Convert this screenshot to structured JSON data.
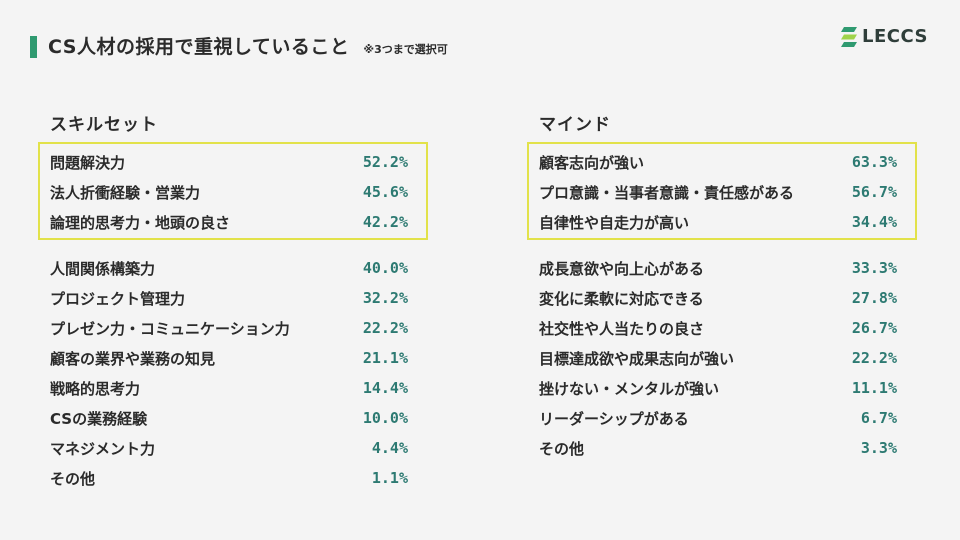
{
  "header": {
    "title": "CS人材の採用で重視していること",
    "note": "※3つまで選択可"
  },
  "logo": {
    "text": "LECCS",
    "icon": "leccs-logo-icon",
    "colors": [
      "#2f9a70",
      "#9fd34a"
    ]
  },
  "accent_color": "#2f9a70",
  "highlight_color": "#e2e24a",
  "value_color": "#2d7a72",
  "skillset": {
    "heading": "スキルセット",
    "top": [
      {
        "label": "問題解決力",
        "value": "52.2%"
      },
      {
        "label": "法人折衝経験・営業力",
        "value": "45.6%"
      },
      {
        "label": "論理的思考力・地頭の良さ",
        "value": "42.2%"
      }
    ],
    "rest": [
      {
        "label": "人間関係構築力",
        "value": "40.0%"
      },
      {
        "label": "プロジェクト管理力",
        "value": "32.2%"
      },
      {
        "label": "プレゼン力・コミュニケーション力",
        "value": "22.2%"
      },
      {
        "label": "顧客の業界や業務の知見",
        "value": "21.1%"
      },
      {
        "label": "戦略的思考力",
        "value": "14.4%"
      },
      {
        "label": "CSの業務経験",
        "value": "10.0%"
      },
      {
        "label": "マネジメント力",
        "value": "4.4%"
      },
      {
        "label": "その他",
        "value": "1.1%"
      }
    ]
  },
  "mind": {
    "heading": "マインド",
    "top": [
      {
        "label": "顧客志向が強い",
        "value": "63.3%"
      },
      {
        "label": "プロ意識・当事者意識・責任感がある",
        "value": "56.7%"
      },
      {
        "label": "自律性や自走力が高い",
        "value": "34.4%"
      }
    ],
    "rest": [
      {
        "label": "成長意欲や向上心がある",
        "value": "33.3%"
      },
      {
        "label": "変化に柔軟に対応できる",
        "value": "27.8%"
      },
      {
        "label": "社交性や人当たりの良さ",
        "value": "26.7%"
      },
      {
        "label": "目標達成欲や成果志向が強い",
        "value": "22.2%"
      },
      {
        "label": "挫けない・メンタルが強い",
        "value": "11.1%"
      },
      {
        "label": "リーダーシップがある",
        "value": "6.7%"
      },
      {
        "label": "その他",
        "value": "3.3%"
      }
    ]
  }
}
